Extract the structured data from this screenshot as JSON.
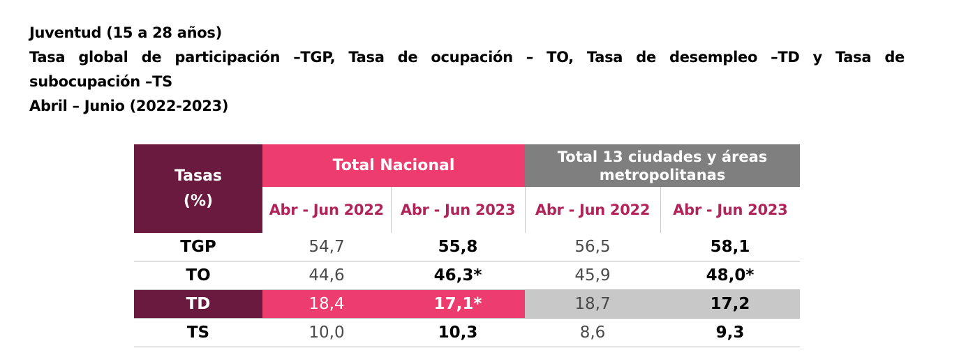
{
  "titles": [
    "Juventud (15 a 28 años)",
    "Tasa global de participación –TGP, Tasa de ocupación – TO, Tasa de desempleo –TD y Tasa de",
    "subocupación –TS",
    "Abril – Junio (2022-2023)"
  ],
  "table": {
    "header_label_line1": "Tasas",
    "header_label_line2": "(%)",
    "group_nacional": "Total Nacional",
    "group_ciudades_line1": "Total 13 ciudades y áreas",
    "group_ciudades_line2": "metropolitanas",
    "periods": [
      "Abr - Jun 2022",
      "Abr - Jun 2023",
      "Abr - Jun 2022",
      "Abr - Jun 2023"
    ],
    "rows": [
      {
        "label": "TGP",
        "values": [
          "54,7",
          "55,8",
          "56,5",
          "58,1"
        ]
      },
      {
        "label": "TO",
        "values": [
          "44,6",
          "46,3*",
          "45,9",
          "48,0*"
        ]
      },
      {
        "label": "TD",
        "values": [
          "18,4",
          "17,1*",
          "18,7",
          "17,2"
        ]
      },
      {
        "label": "TS",
        "values": [
          "10,0",
          "10,3",
          "8,6",
          "9,3"
        ]
      }
    ]
  },
  "colors": {
    "maroon": "#6b1a3f",
    "pink": "#ec3d6e",
    "gray": "#7f7f7f",
    "light_gray": "#c8c8c8",
    "period_text": "#b0245a"
  }
}
